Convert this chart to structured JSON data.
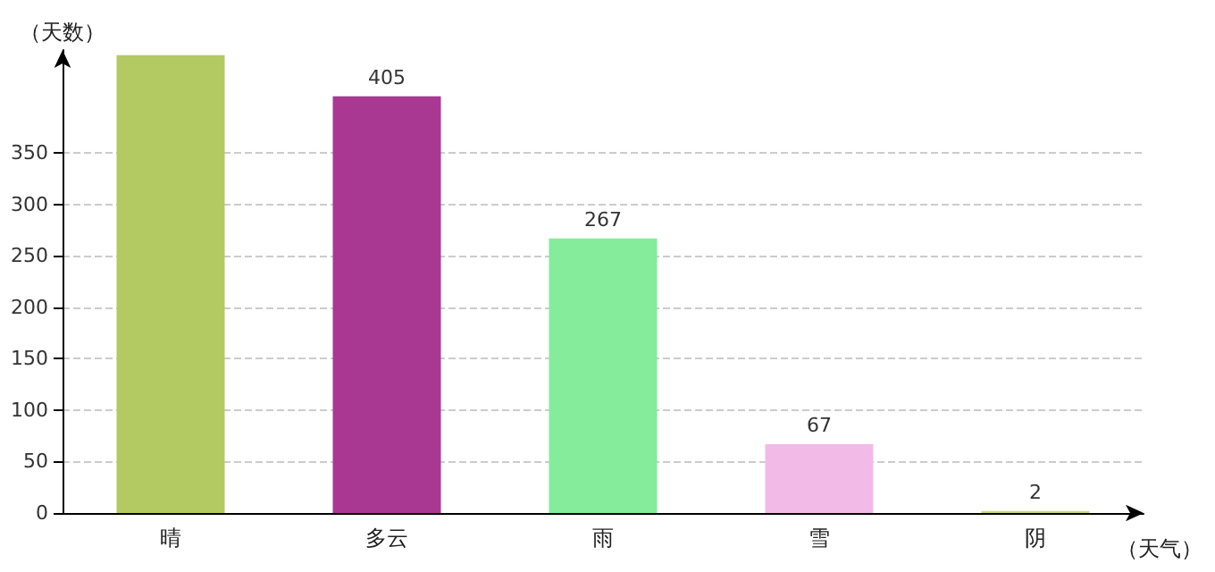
{
  "chart_data": {
    "type": "bar",
    "xlabel": "（天气）",
    "ylabel": "（天数）",
    "categories": [
      "晴",
      "多云",
      "雨",
      "雪",
      "阴"
    ],
    "values": [
      445,
      405,
      267,
      67,
      2
    ],
    "value_labels": [
      null,
      "405",
      "267",
      "67",
      "2"
    ],
    "colors": [
      "#b3c962",
      "#a83892",
      "#84ec9a",
      "#f2bae6",
      "#c9d77a"
    ],
    "ylim": [
      0,
      450
    ],
    "yticks": [
      0,
      50,
      100,
      150,
      200,
      250,
      300,
      350
    ],
    "grid": "y"
  }
}
